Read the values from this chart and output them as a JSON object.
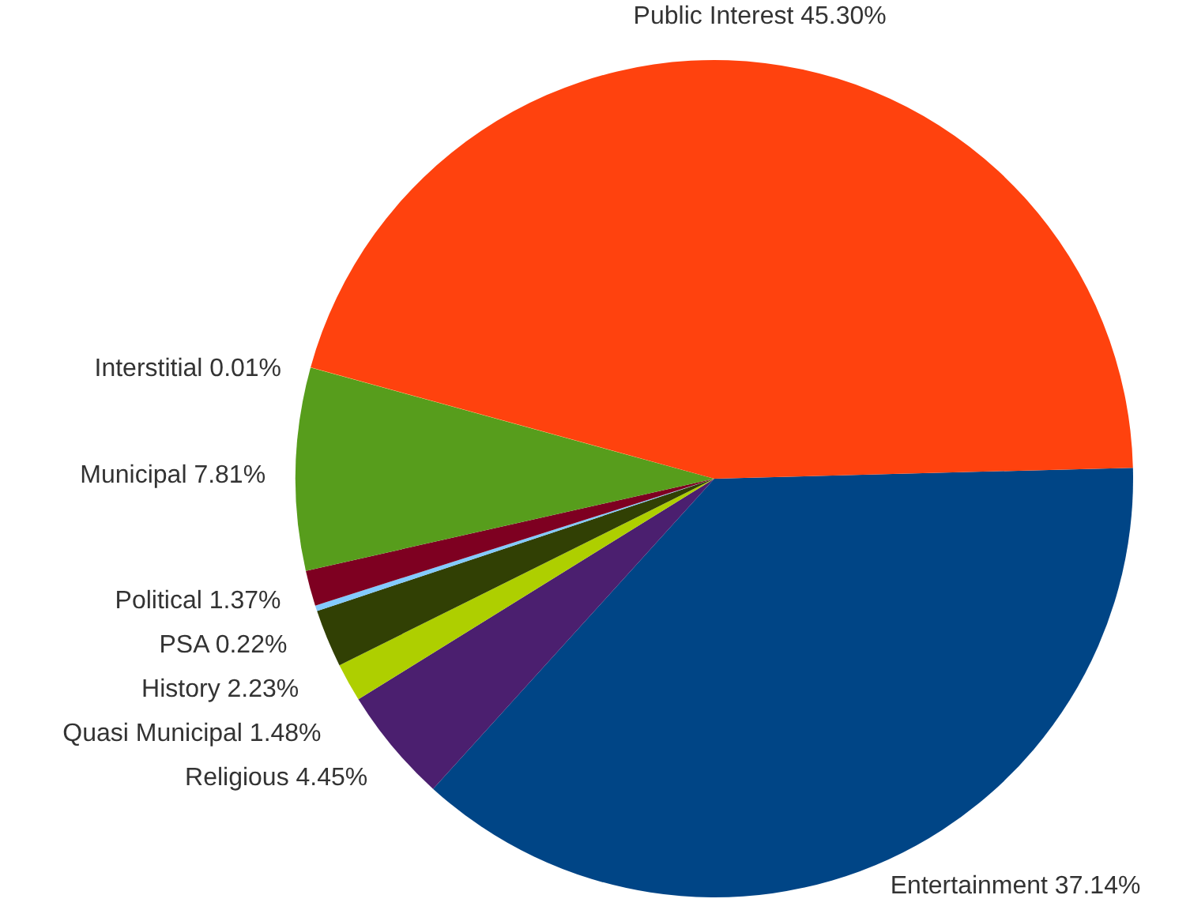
{
  "chart_data": {
    "type": "pie",
    "categories": [
      "Entertainment",
      "Religious",
      "Quasi Municipal",
      "History",
      "PSA",
      "Political",
      "Municipal",
      "Interstitial",
      "Public Interest"
    ],
    "values": [
      37.14,
      4.45,
      1.48,
      2.23,
      0.22,
      1.37,
      7.81,
      0.01,
      45.3
    ],
    "value_labels": [
      "37.14%",
      "4.45%",
      "1.48%",
      "2.23%",
      "0.22%",
      "1.37%",
      "7.81%",
      "0.01%",
      "45.30%"
    ],
    "colors": [
      "#004586",
      "#4b1f6f",
      "#aecf00",
      "#314004",
      "#83caff",
      "#7e0021",
      "#579d1c",
      "#ffd320",
      "#ff420e"
    ]
  }
}
